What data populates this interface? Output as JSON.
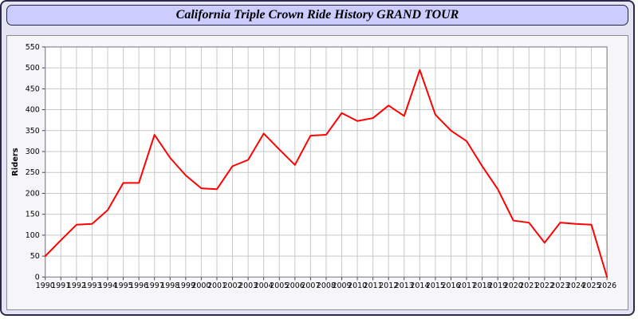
{
  "title": "California Triple Crown Ride History GRAND TOUR",
  "chart_data": {
    "type": "line",
    "title": "California Triple Crown Ride History GRAND TOUR",
    "xlabel": "",
    "ylabel": "Riders",
    "ylim": [
      0,
      550
    ],
    "ytick_step": 50,
    "grid": true,
    "legend": "none",
    "line_color": "#ff0000",
    "grid_color": "#c9c9c9",
    "plot_bg": "#ffffff",
    "x": [
      1990,
      1991,
      1992,
      1993,
      1994,
      1995,
      1996,
      1997,
      1998,
      1999,
      2000,
      2001,
      2002,
      2003,
      2004,
      2005,
      2006,
      2007,
      2008,
      2009,
      2010,
      2011,
      2012,
      2013,
      2014,
      2015,
      2016,
      2017,
      2018,
      2019,
      2020,
      2021,
      2022,
      2023,
      2024,
      2025,
      2026
    ],
    "series": [
      {
        "name": "Riders",
        "values": [
          50,
          88,
          125,
          127,
          160,
          225,
          225,
          340,
          285,
          243,
          212,
          210,
          265,
          280,
          343,
          305,
          268,
          338,
          340,
          392,
          373,
          380,
          410,
          385,
          495,
          388,
          350,
          325,
          265,
          210,
          135,
          130,
          82,
          130,
          127,
          125,
          0
        ]
      }
    ]
  }
}
